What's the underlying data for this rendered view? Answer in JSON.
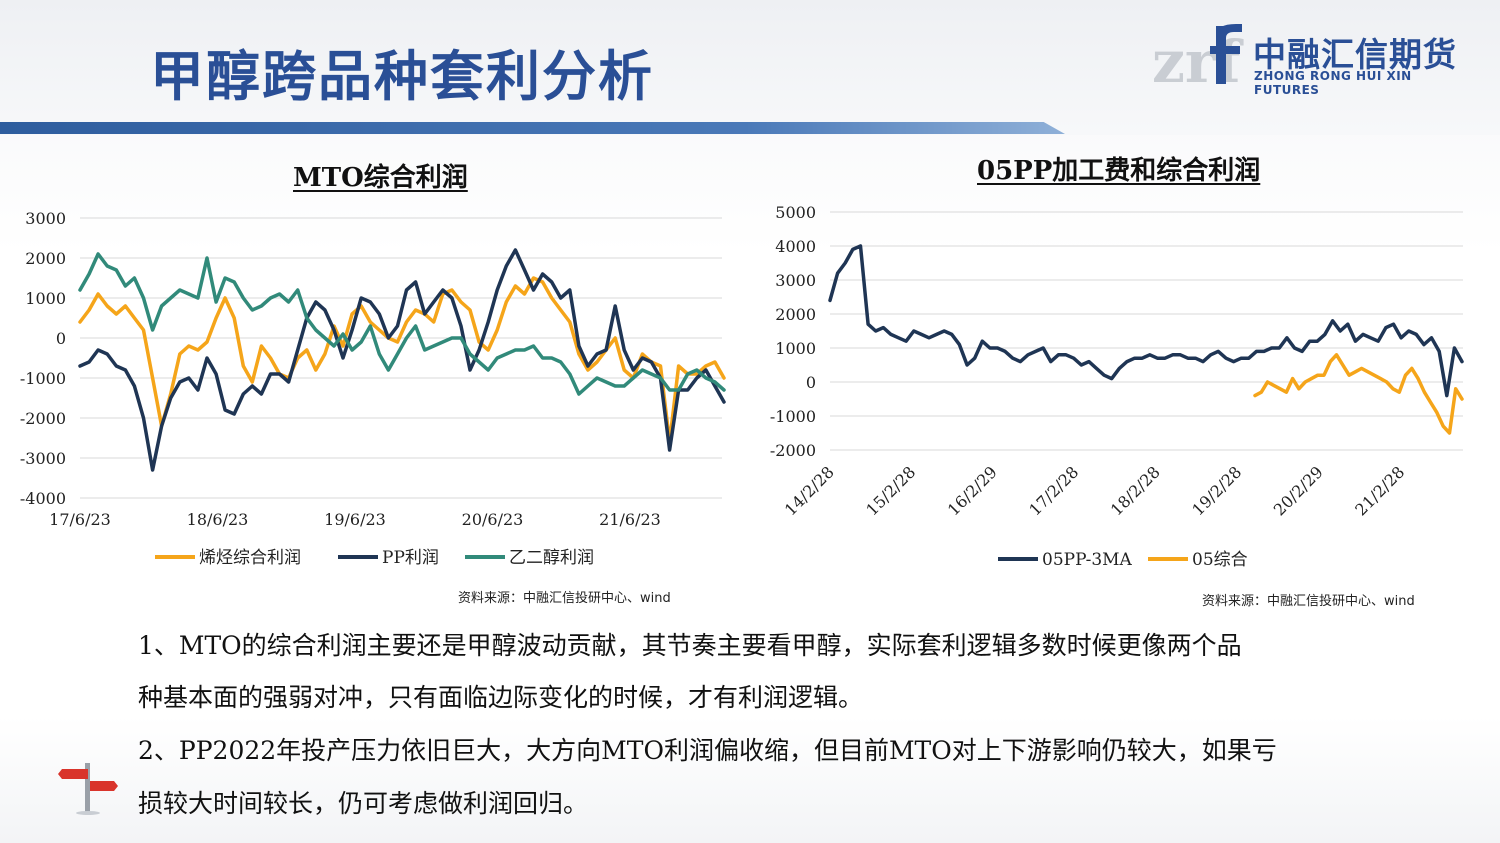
{
  "header": {
    "title": "甲醇跨品种套利分析",
    "logo_name": "中融汇信期货",
    "logo_en": "ZHONG RONG HUI XIN FUTURES",
    "logo_mark": "zrf"
  },
  "colors": {
    "accent": "#2a4f96",
    "orange": "#f5a51a",
    "navy": "#1f3554",
    "teal": "#318a7a"
  },
  "chart_data": [
    {
      "type": "line",
      "title": "MTO综合利润",
      "ylim": [
        -4000,
        3000
      ],
      "yticks": [
        "3000",
        "2000",
        "1000",
        "0",
        "-1000",
        "-2000",
        "-3000",
        "-4000"
      ],
      "xticks": [
        "17/6/23",
        "18/6/23",
        "19/6/23",
        "20/6/23",
        "21/6/23"
      ],
      "grid": true,
      "legend": "bottom",
      "source": "资料来源：中融汇信投研中心、wind",
      "series": [
        {
          "name": "烯烃综合利润",
          "color": "#f5a51a",
          "values": [
            400,
            700,
            1100,
            800,
            600,
            800,
            500,
            200,
            -1000,
            -2200,
            -1400,
            -400,
            -200,
            -300,
            -100,
            500,
            1000,
            500,
            -700,
            -1100,
            -200,
            -500,
            -900,
            -1000,
            -500,
            -300,
            -800,
            -400,
            300,
            -200,
            600,
            800,
            400,
            200,
            0,
            -100,
            400,
            700,
            600,
            400,
            1100,
            1200,
            900,
            700,
            -100,
            -300,
            200,
            900,
            1300,
            1100,
            1500,
            1400,
            1000,
            700,
            400,
            -400,
            -800,
            -600,
            -300,
            0,
            -800,
            -1000,
            -400,
            -600,
            -700,
            -2600,
            -700,
            -900,
            -900,
            -700,
            -600,
            -1000
          ]
        },
        {
          "name": "PP利润",
          "color": "#1f3554",
          "values": [
            -700,
            -600,
            -300,
            -400,
            -700,
            -800,
            -1200,
            -2000,
            -3300,
            -2200,
            -1500,
            -1100,
            -1000,
            -1300,
            -500,
            -900,
            -1800,
            -1900,
            -1400,
            -1200,
            -1400,
            -900,
            -900,
            -1100,
            -300,
            500,
            900,
            700,
            200,
            -500,
            200,
            1000,
            900,
            600,
            0,
            300,
            1200,
            1400,
            600,
            900,
            1200,
            1000,
            300,
            -800,
            -300,
            400,
            1200,
            1800,
            2200,
            1700,
            1200,
            1600,
            1400,
            1000,
            1200,
            -200,
            -700,
            -400,
            -300,
            800,
            -300,
            -800,
            -500,
            -600,
            -1000,
            -2800,
            -1300,
            -1300,
            -1000,
            -800,
            -1200,
            -1600
          ]
        },
        {
          "name": "乙二醇利润",
          "color": "#318a7a",
          "values": [
            1200,
            1600,
            2100,
            1800,
            1700,
            1300,
            1500,
            1000,
            200,
            800,
            1000,
            1200,
            1100,
            1000,
            2000,
            900,
            1500,
            1400,
            1000,
            700,
            800,
            1000,
            1100,
            900,
            1200,
            500,
            200,
            0,
            -200,
            100,
            -300,
            -100,
            300,
            -400,
            -800,
            -400,
            0,
            300,
            -300,
            -200,
            -100,
            0,
            0,
            -400,
            -600,
            -800,
            -500,
            -400,
            -300,
            -300,
            -200,
            -500,
            -500,
            -600,
            -900,
            -1400,
            -1200,
            -1000,
            -1100,
            -1200,
            -1200,
            -1000,
            -800,
            -900,
            -1000,
            -1300,
            -1300,
            -900,
            -800,
            -1000,
            -1100,
            -1300
          ]
        }
      ]
    },
    {
      "type": "line",
      "title": "05PP加工费和综合利润",
      "ylim": [
        -2000,
        5000
      ],
      "yticks": [
        "5000",
        "4000",
        "3000",
        "2000",
        "1000",
        "0",
        "-1000",
        "-2000"
      ],
      "xticks": [
        "14/2/28",
        "15/2/28",
        "16/2/29",
        "17/2/28",
        "18/2/28",
        "19/2/28",
        "20/2/29",
        "21/2/28"
      ],
      "grid": true,
      "legend": "bottom",
      "source": "资料来源：中融汇信投研中心、wind",
      "series": [
        {
          "name": "05PP-3MA",
          "color": "#1f3554",
          "values": [
            2400,
            3200,
            3500,
            3900,
            4000,
            1700,
            1500,
            1600,
            1400,
            1300,
            1200,
            1500,
            1400,
            1300,
            1400,
            1500,
            1400,
            1100,
            500,
            700,
            1200,
            1000,
            1000,
            900,
            700,
            600,
            800,
            900,
            1000,
            600,
            800,
            800,
            700,
            500,
            600,
            400,
            200,
            100,
            400,
            600,
            700,
            700,
            800,
            700,
            700,
            800,
            800,
            700,
            700,
            600,
            800,
            900,
            700,
            600,
            700,
            700,
            900,
            900,
            1000,
            1000,
            1300,
            1000,
            900,
            1200,
            1200,
            1400,
            1800,
            1500,
            1700,
            1200,
            1400,
            1300,
            1200,
            1600,
            1700,
            1300,
            1500,
            1400,
            1100,
            1300,
            900,
            -400,
            1000,
            600
          ]
        },
        {
          "name": "05综合",
          "color": "#f5a51a",
          "values": [
            -400,
            -300,
            0,
            -100,
            -200,
            -300,
            100,
            -200,
            0,
            100,
            200,
            200,
            600,
            800,
            500,
            200,
            300,
            400,
            300,
            200,
            100,
            0,
            -200,
            -300,
            200,
            400,
            100,
            -300,
            -600,
            -900,
            -1300,
            -1500,
            -200,
            -500
          ]
        }
      ]
    }
  ],
  "body": {
    "line1": "1、MTO的综合利润主要还是甲醇波动贡献，其节奏主要看甲醇，实际套利逻辑多数时候更像两个品",
    "line2": "种基本面的强弱对冲，只有面临边际变化的时候，才有利润逻辑。",
    "line3": "2、PP2022年投产压力依旧巨大，大方向MTO利润偏收缩，但目前MTO对上下游影响仍较大，如果亏",
    "line4": "损较大时间较长，仍可考虑做利润回归。"
  }
}
